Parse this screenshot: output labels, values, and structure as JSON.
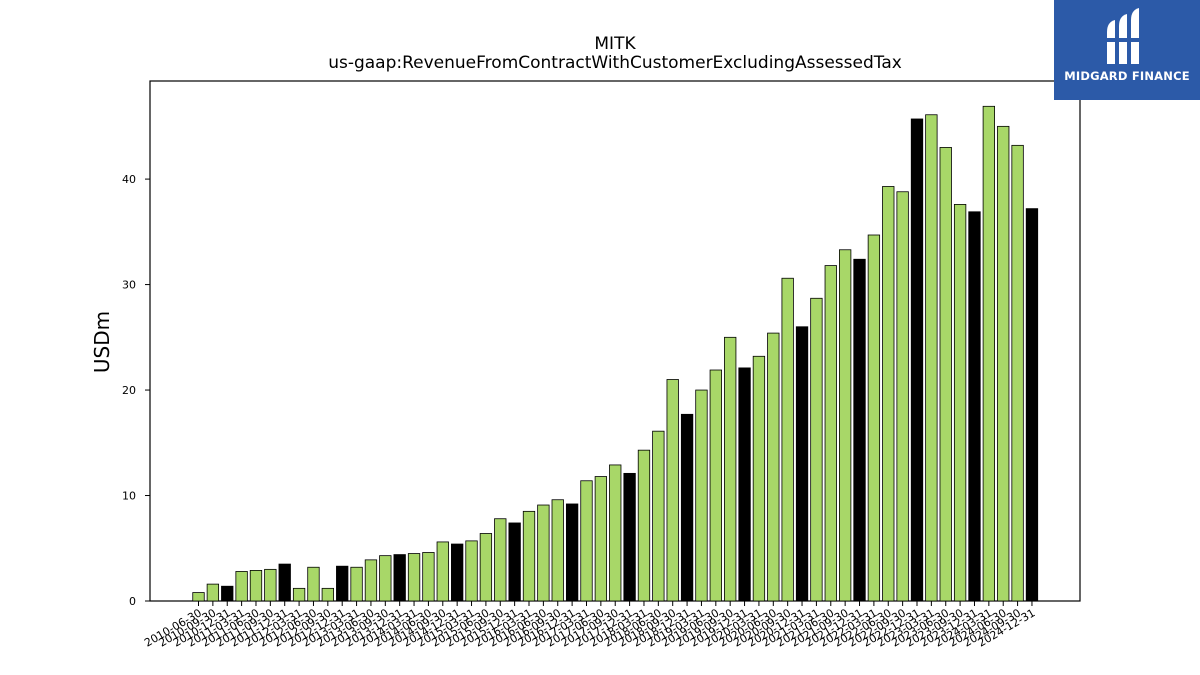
{
  "brand": {
    "name": "MIDGARD FINANCE",
    "background": "#2c5aa8"
  },
  "chart_data": {
    "type": "bar",
    "title": "MITK",
    "subtitle": "us-gaap:RevenueFromContractWithCustomerExcludingAssessedTax",
    "xlabel": "",
    "ylabel": "USDm",
    "ylim": [
      0,
      49.3
    ],
    "yticks": [
      0,
      10,
      20,
      30,
      40
    ],
    "grid": false,
    "colors": {
      "quarter": "#a8d768",
      "annual": "#000000",
      "edge": "#000000"
    },
    "categories": [
      "2010-06-30",
      "2010-09-30",
      "2010-12-31",
      "2011-03-31",
      "2011-06-30",
      "2011-09-30",
      "2011-12-31",
      "2012-03-31",
      "2012-06-30",
      "2012-09-30",
      "2012-12-31",
      "2013-03-31",
      "2013-06-30",
      "2013-09-30",
      "2013-12-31",
      "2014-03-31",
      "2014-06-30",
      "2014-09-30",
      "2014-12-31",
      "2015-03-31",
      "2015-06-30",
      "2015-09-30",
      "2015-12-31",
      "2016-03-31",
      "2016-06-30",
      "2016-09-30",
      "2016-12-31",
      "2017-03-31",
      "2017-06-30",
      "2017-09-30",
      "2017-12-31",
      "2018-03-31",
      "2018-06-30",
      "2018-09-30",
      "2018-12-31",
      "2019-03-31",
      "2019-06-30",
      "2019-09-30",
      "2019-12-31",
      "2020-03-31",
      "2020-06-30",
      "2020-09-30",
      "2020-12-31",
      "2021-03-31",
      "2021-06-30",
      "2021-09-30",
      "2021-12-31",
      "2022-03-31",
      "2022-06-30",
      "2022-09-30",
      "2022-12-31",
      "2023-03-31",
      "2023-06-30",
      "2023-09-30",
      "2023-12-31",
      "2024-03-31",
      "2024-06-30",
      "2024-09-30",
      "2024-12-31"
    ],
    "values": [
      0.8,
      1.6,
      1.4,
      2.8,
      2.9,
      3.0,
      3.5,
      1.2,
      3.2,
      1.2,
      3.3,
      3.2,
      3.9,
      4.3,
      4.4,
      4.5,
      4.6,
      5.6,
      5.4,
      5.7,
      6.4,
      7.8,
      7.4,
      8.5,
      9.1,
      9.6,
      9.2,
      11.4,
      11.8,
      12.9,
      12.1,
      14.3,
      16.1,
      21.0,
      17.7,
      20.0,
      21.9,
      25.0,
      22.1,
      23.2,
      25.4,
      30.6,
      26.0,
      28.7,
      31.8,
      33.3,
      32.4,
      34.7,
      39.3,
      38.8,
      45.7,
      46.1,
      43.0,
      37.6,
      36.9,
      46.9,
      45.0,
      43.2,
      37.2
    ],
    "annual_flags": [
      0,
      0,
      1,
      0,
      0,
      0,
      1,
      0,
      0,
      0,
      1,
      0,
      0,
      0,
      1,
      0,
      0,
      0,
      1,
      0,
      0,
      0,
      1,
      0,
      0,
      0,
      1,
      0,
      0,
      0,
      1,
      0,
      0,
      0,
      1,
      0,
      0,
      0,
      1,
      0,
      0,
      0,
      1,
      0,
      0,
      0,
      1,
      0,
      0,
      0,
      1,
      0,
      0,
      0,
      1,
      0,
      0,
      0,
      1
    ]
  }
}
